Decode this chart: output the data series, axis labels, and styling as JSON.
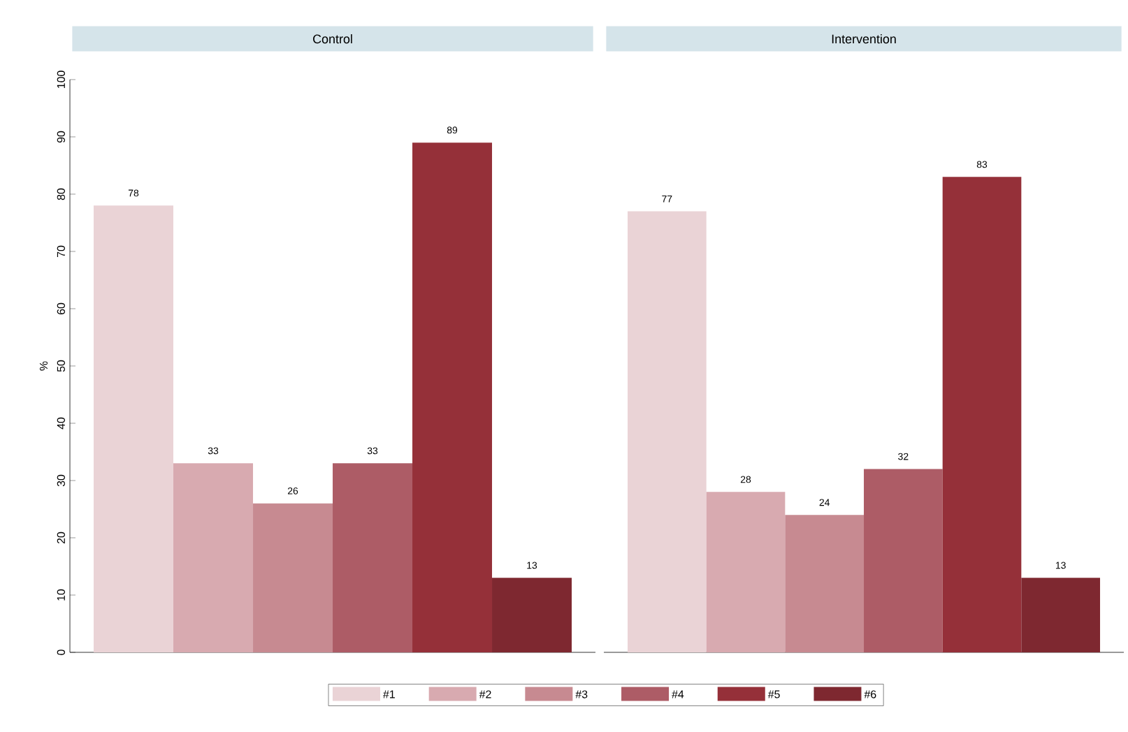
{
  "chart_data": [
    {
      "type": "bar",
      "title": "Control",
      "ylabel": "%",
      "categories": [
        null
      ],
      "ylim": [
        0,
        100
      ],
      "yticks": [
        0,
        10,
        20,
        30,
        40,
        50,
        60,
        70,
        80,
        90,
        100
      ],
      "tick_labels": "y",
      "data_labels": true,
      "legend": "bottom",
      "series": [
        {
          "name": "#1",
          "color": "#ead3d6",
          "values": [
            78
          ]
        },
        {
          "name": "#2",
          "color": "#d8aab0",
          "values": [
            33
          ]
        },
        {
          "name": "#3",
          "color": "#c78a91",
          "values": [
            26
          ]
        },
        {
          "name": "#4",
          "color": "#ad5c66",
          "values": [
            33
          ]
        },
        {
          "name": "#5",
          "color": "#953039",
          "values": [
            89
          ]
        },
        {
          "name": "#6",
          "color": "#7e2830",
          "values": [
            13
          ]
        }
      ]
    },
    {
      "type": "bar",
      "title": "Intervention",
      "categories": [
        null
      ],
      "tick_labels": false,
      "data_labels": true,
      "series": [
        {
          "color": "#ead3d6",
          "values": [
            77
          ]
        },
        {
          "color": "#d8aab0",
          "values": [
            28
          ]
        },
        {
          "color": "#c78a91",
          "values": [
            24
          ]
        },
        {
          "color": "#ad5c66",
          "values": [
            32
          ]
        },
        {
          "color": "#953039",
          "values": [
            83
          ]
        },
        {
          "color": "#7e2830",
          "values": [
            13
          ]
        }
      ]
    }
  ]
}
